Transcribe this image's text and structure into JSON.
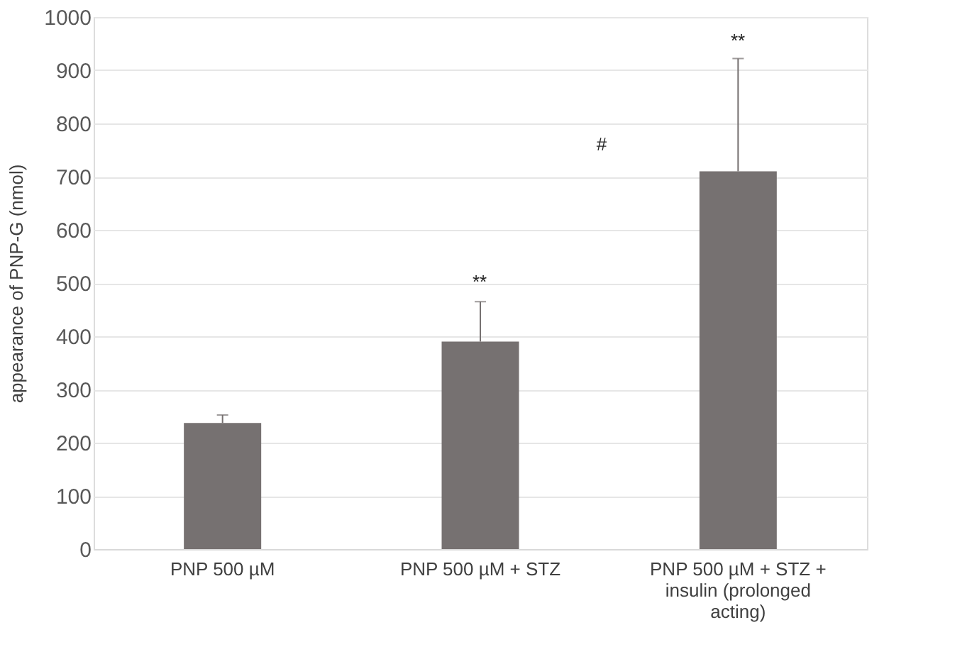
{
  "chart_data": {
    "type": "bar",
    "categories": [
      "PNP 500 µM",
      "PNP 500 µM + STZ",
      "PNP 500 µM + STZ + insulin (prolonged acting)"
    ],
    "values": [
      237,
      390,
      710
    ],
    "errors": [
      15,
      75,
      212
    ],
    "color": "#767171",
    "ylabel": "appearance  of PNP-G (nmol)",
    "ylim": [
      0,
      1000
    ],
    "yticks": [
      0,
      100,
      200,
      300,
      400,
      500,
      600,
      700,
      800,
      900,
      1000
    ],
    "grid": "y",
    "annotations": [
      "**",
      "**",
      "#"
    ]
  }
}
